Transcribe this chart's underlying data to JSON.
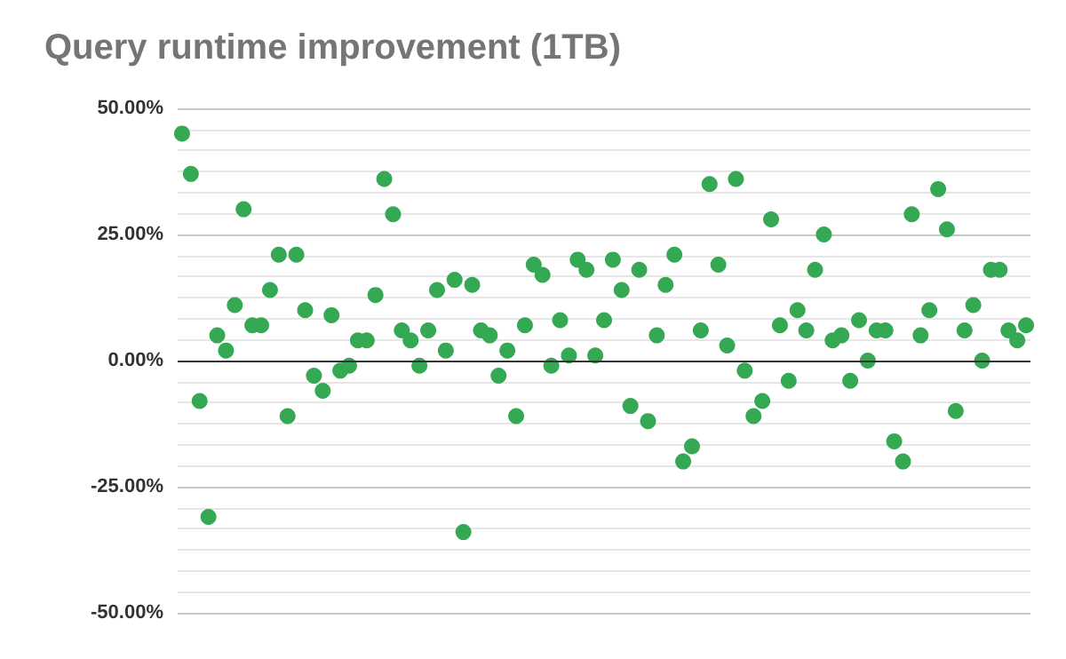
{
  "chart_data": {
    "type": "scatter",
    "title": "Query runtime improvement (1TB)",
    "categories": [
      null,
      null,
      null,
      null,
      null,
      null,
      null,
      null,
      null,
      null,
      null,
      null,
      null,
      null,
      null,
      null,
      null,
      null,
      null,
      null,
      null,
      null,
      null,
      null,
      null,
      null,
      null,
      null,
      null,
      null,
      null,
      null,
      null,
      null,
      null,
      null,
      null,
      null,
      null,
      null,
      null,
      null,
      null,
      null,
      null,
      null,
      null,
      null,
      null,
      null,
      null,
      null,
      null,
      null,
      null,
      null,
      null,
      null,
      null,
      null,
      null,
      null,
      null,
      null,
      null,
      null,
      null,
      null,
      null,
      null,
      null,
      null,
      null,
      null,
      null,
      null,
      null,
      null,
      null,
      null,
      null,
      null,
      null,
      null,
      null,
      null,
      null,
      null,
      null,
      null,
      null,
      null,
      null,
      null,
      null,
      null,
      null
    ],
    "series": [
      {
        "color": "#34a853",
        "values": [
          45,
          37,
          -8,
          -31,
          5,
          2,
          11,
          30,
          7,
          7,
          14,
          21,
          -11,
          21,
          10,
          -3,
          -6,
          9,
          -2,
          -1,
          4,
          4,
          13,
          36,
          29,
          6,
          4,
          -1,
          6,
          14,
          2,
          16,
          -34,
          15,
          6,
          5,
          -3,
          2,
          -11,
          7,
          19,
          17,
          -1,
          8,
          1,
          20,
          18,
          1,
          8,
          20,
          14,
          -9,
          18,
          -12,
          5,
          15,
          21,
          -20,
          -17,
          6,
          35,
          19,
          3,
          36,
          -2,
          -11,
          -8,
          28,
          7,
          -4,
          10,
          6,
          18,
          25,
          4,
          5,
          -4,
          8,
          0,
          6,
          6,
          -16,
          -20,
          29,
          5,
          10,
          34,
          26,
          -10,
          6,
          11,
          0,
          18,
          18,
          6,
          4,
          7
        ]
      }
    ],
    "ylim": [
      -50,
      50
    ],
    "yticks": [
      {
        "value": -50,
        "label": "-50.00%"
      },
      {
        "value": -25,
        "label": "-25.00%"
      },
      {
        "value": 0,
        "label": "0.00%"
      },
      {
        "value": 25,
        "label": "25.00%"
      },
      {
        "value": 50,
        "label": "50.00%"
      }
    ],
    "grid": "y",
    "marker": "circle",
    "tick_labels": "y"
  }
}
